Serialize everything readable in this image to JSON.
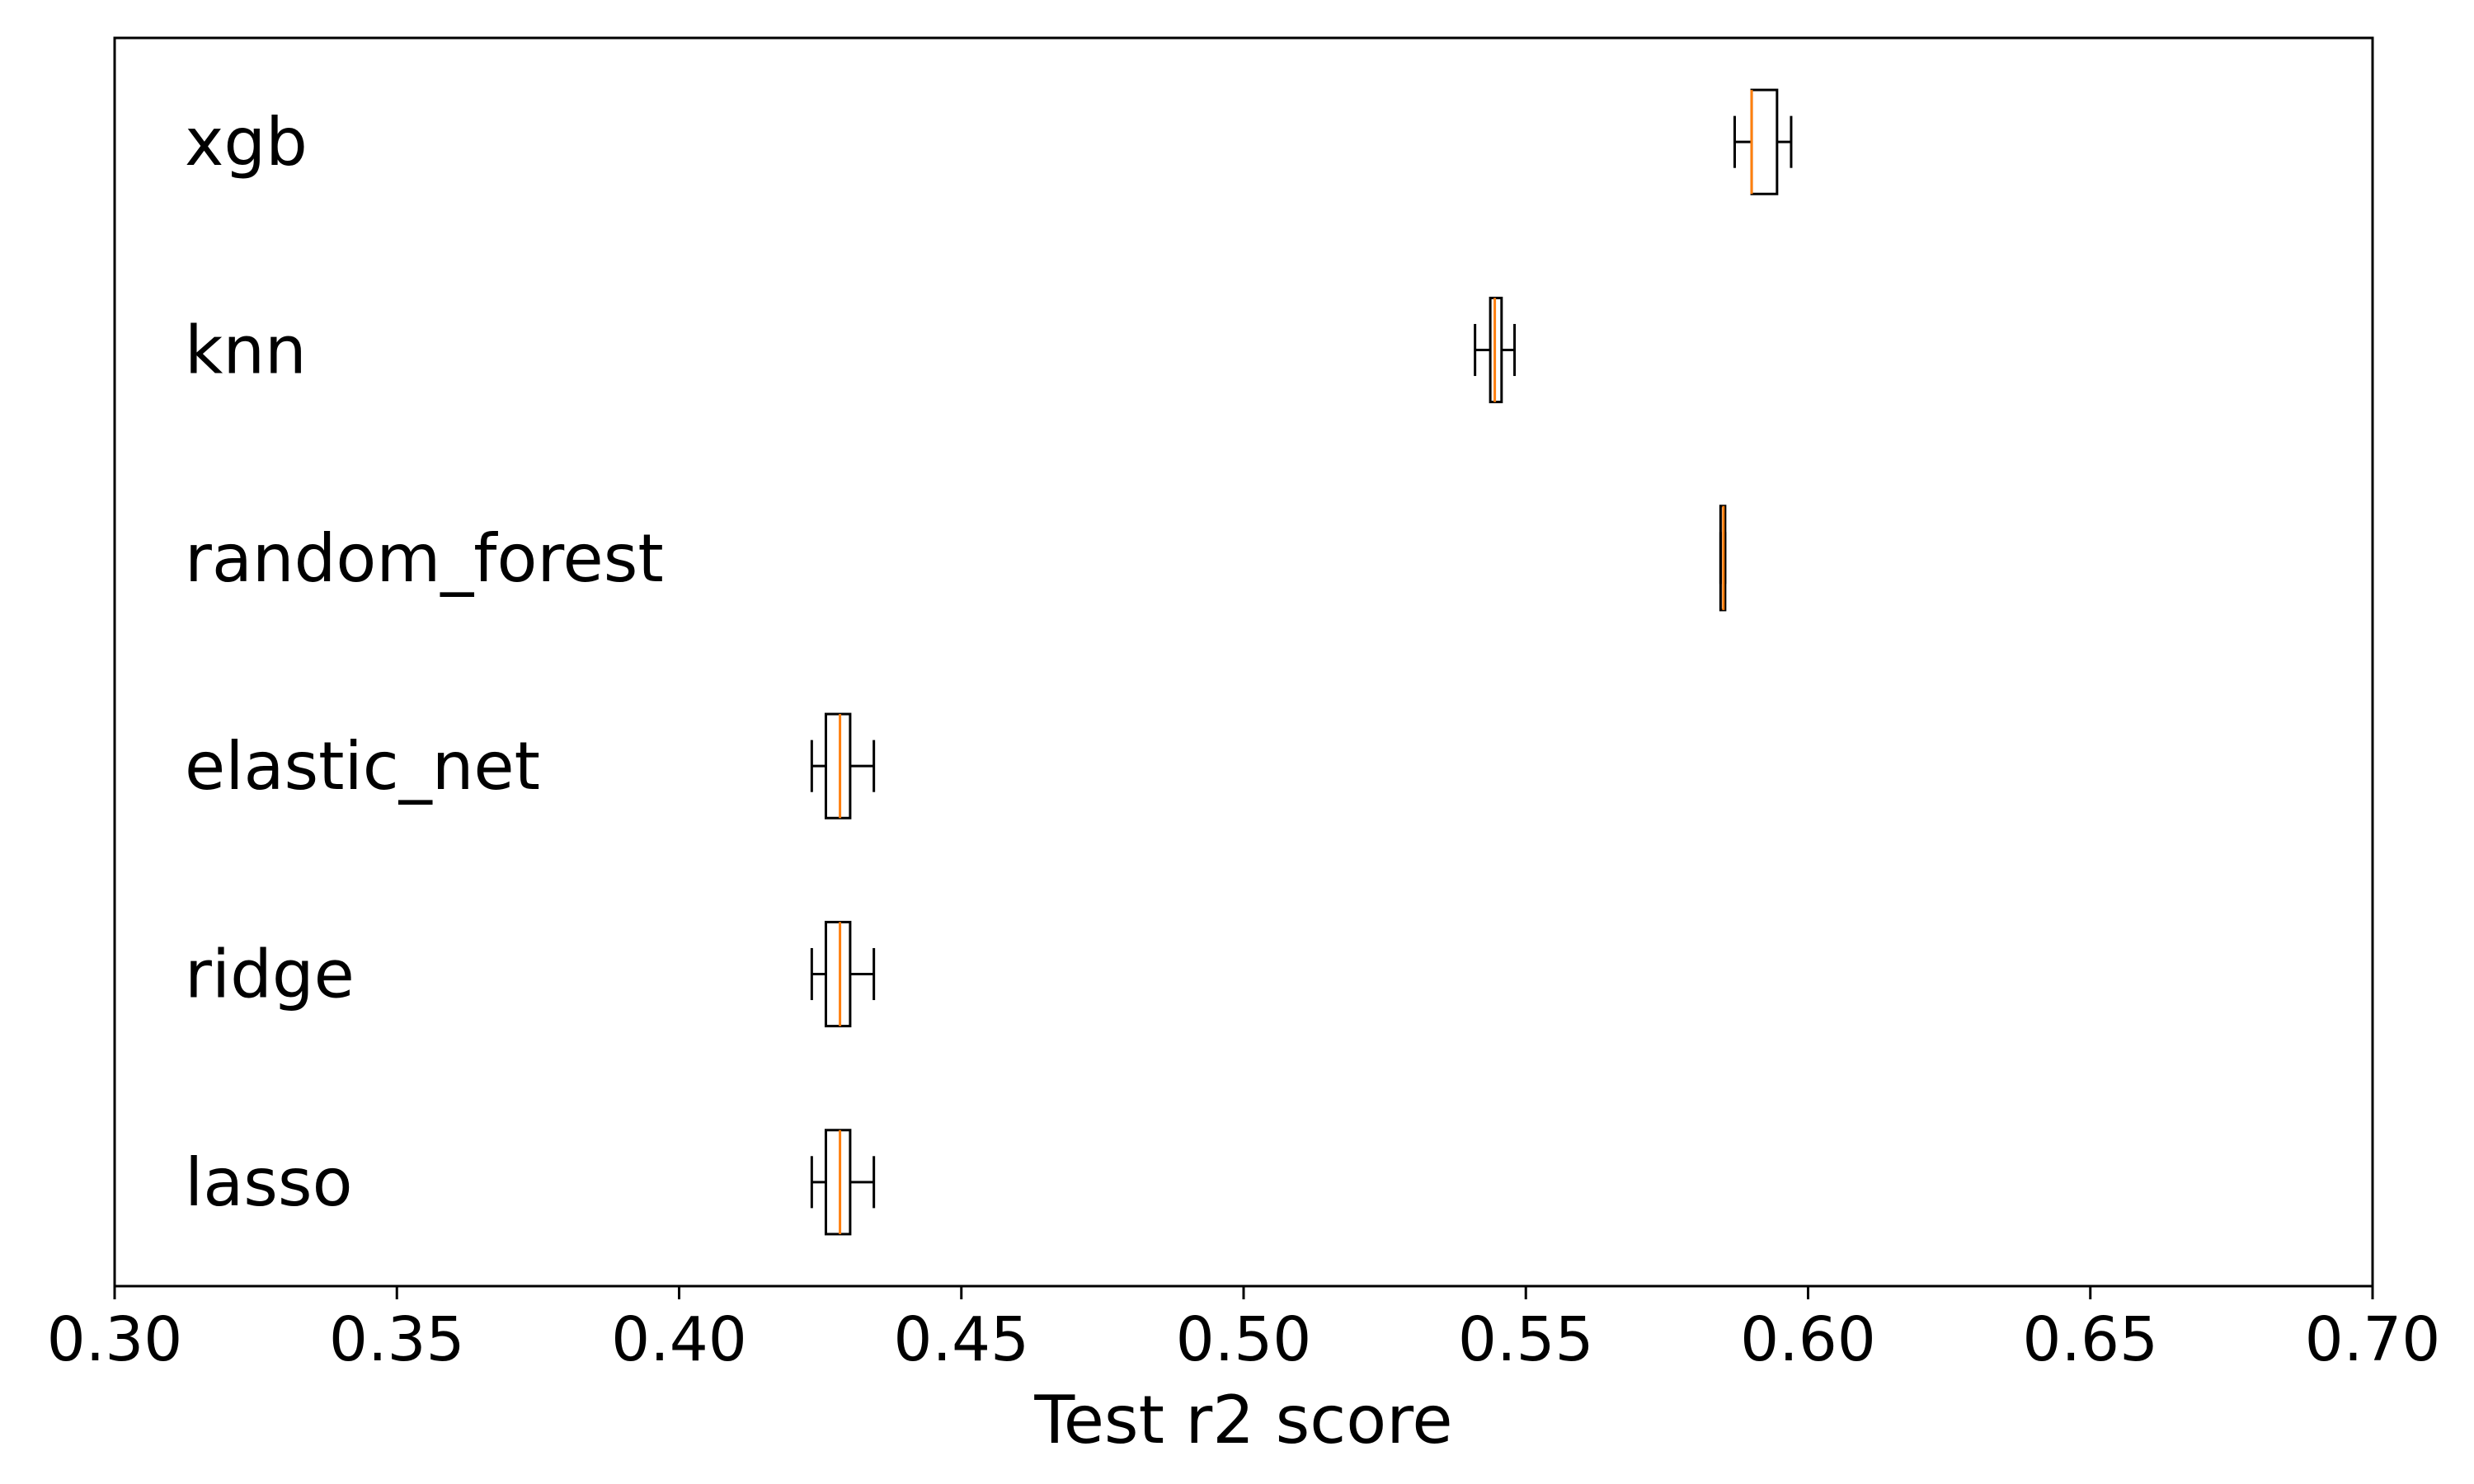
{
  "chart_data": {
    "type": "boxplot",
    "orientation": "horizontal",
    "xlabel": "Test r2 score",
    "xlim": [
      0.3,
      0.7
    ],
    "xticks": [
      0.3,
      0.35,
      0.4,
      0.45,
      0.5,
      0.55,
      0.6,
      0.65,
      0.7
    ],
    "xtick_labels": [
      "0.30",
      "0.35",
      "0.40",
      "0.45",
      "0.50",
      "0.55",
      "0.60",
      "0.65",
      "0.70"
    ],
    "grid": false,
    "legend": "none",
    "colors": {
      "box": "#000000",
      "median": "#ff7f0e"
    },
    "categories": [
      {
        "name": "xgb",
        "whisker_low": 0.587,
        "q1": 0.59,
        "median": 0.59,
        "q3": 0.5945,
        "whisker_high": 0.597
      },
      {
        "name": "knn",
        "whisker_low": 0.541,
        "q1": 0.5437,
        "median": 0.5445,
        "q3": 0.5457,
        "whisker_high": 0.548
      },
      {
        "name": "random_forest",
        "whisker_low": 0.5845,
        "q1": 0.5845,
        "median": 0.585,
        "q3": 0.5853,
        "whisker_high": 0.5853
      },
      {
        "name": "elastic_net",
        "whisker_low": 0.4235,
        "q1": 0.426,
        "median": 0.4285,
        "q3": 0.4303,
        "whisker_high": 0.4345
      },
      {
        "name": "ridge",
        "whisker_low": 0.4235,
        "q1": 0.426,
        "median": 0.4285,
        "q3": 0.4303,
        "whisker_high": 0.4345
      },
      {
        "name": "lasso",
        "whisker_low": 0.4235,
        "q1": 0.426,
        "median": 0.4285,
        "q3": 0.4303,
        "whisker_high": 0.4345
      }
    ]
  }
}
